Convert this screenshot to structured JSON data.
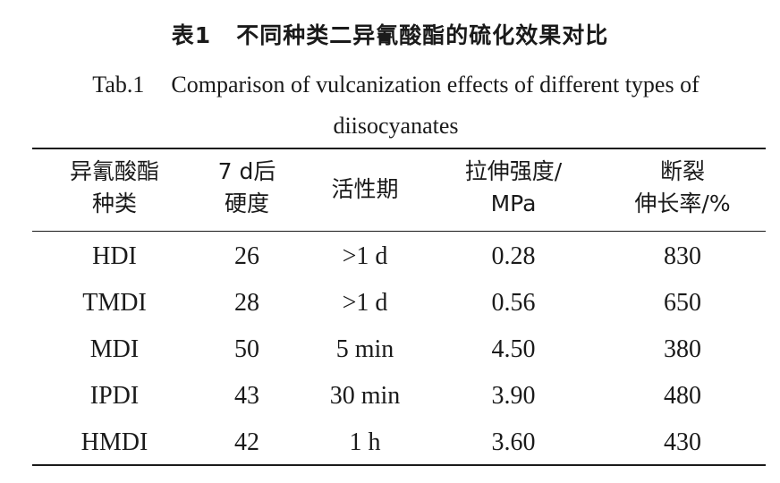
{
  "caption": {
    "cn_label": "表1",
    "cn_title": "不同种类二异氰酸酯的硫化效果对比",
    "en_label": "Tab.1",
    "en_title": "Comparison of vulcanization effects of different types of diisocyanates"
  },
  "table": {
    "headers": [
      {
        "line1": "异氰酸酯",
        "line2": "种类"
      },
      {
        "line1": "7 d后",
        "line2": "硬度"
      },
      {
        "line1": "活性期",
        "line2": ""
      },
      {
        "line1": "拉伸强度/",
        "line2": "MPa"
      },
      {
        "line1": "断裂",
        "line2": "伸长率/%"
      }
    ],
    "rows": [
      [
        "HDI",
        "26",
        ">1 d",
        "0.28",
        "830"
      ],
      [
        "TMDI",
        "28",
        ">1 d",
        "0.56",
        "650"
      ],
      [
        "MDI",
        "50",
        "5 min",
        "4.50",
        "380"
      ],
      [
        "IPDI",
        "43",
        "30 min",
        "3.90",
        "480"
      ],
      [
        "HMDI",
        "42",
        "1 h",
        "3.60",
        "430"
      ]
    ]
  }
}
